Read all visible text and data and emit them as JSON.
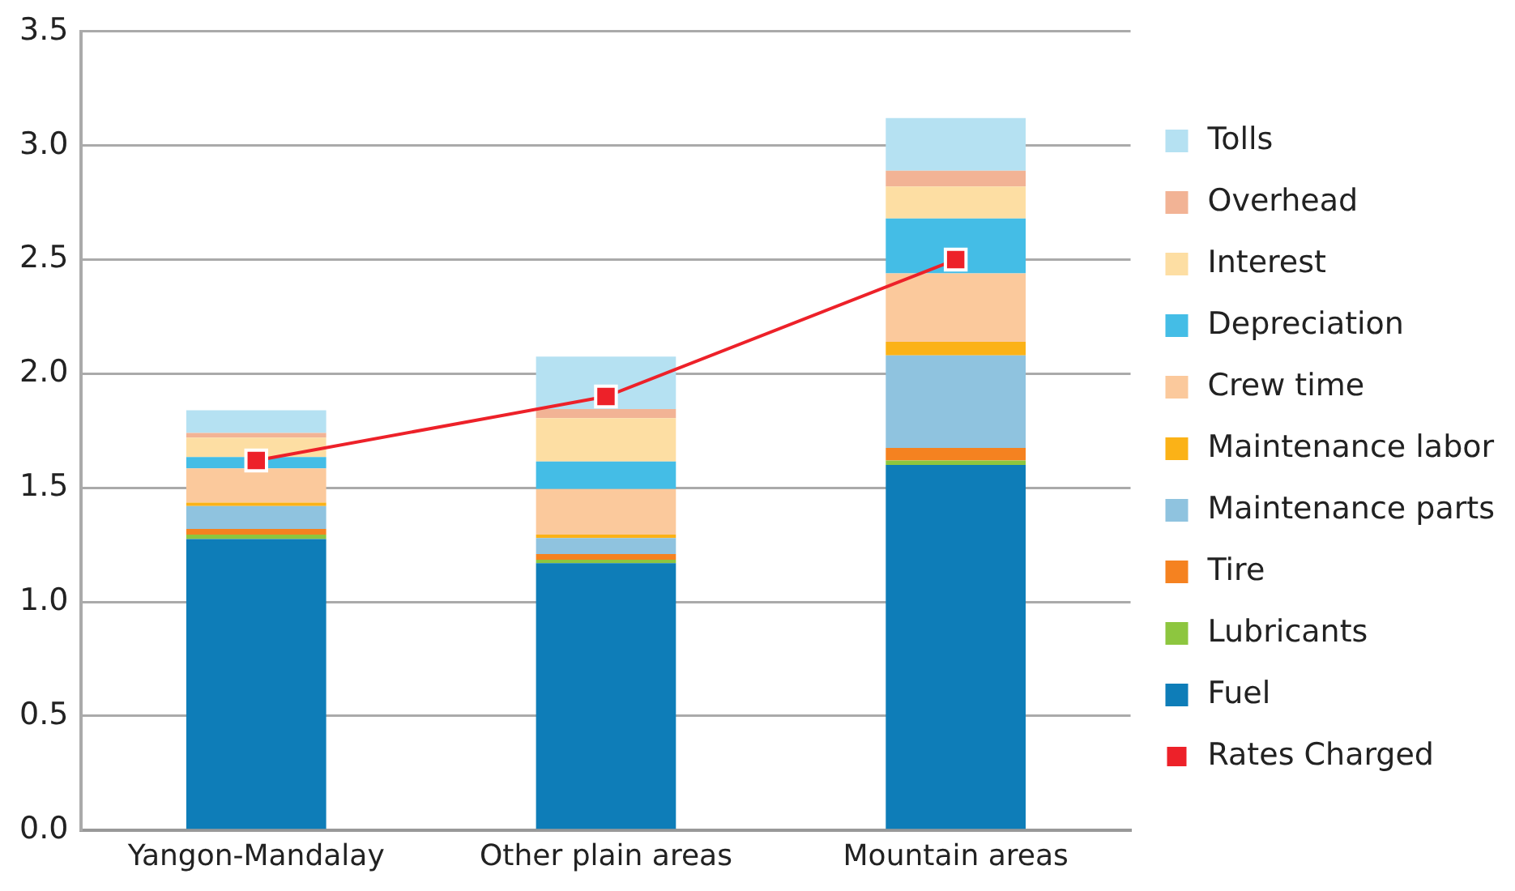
{
  "chart_data": {
    "type": "bar",
    "stacked": true,
    "categories": [
      "Yangon-Mandalay",
      "Other plain areas",
      "Mountain areas"
    ],
    "series": [
      {
        "name": "Fuel",
        "color": "#0e7db8",
        "values": [
          1.275,
          1.17,
          1.6
        ]
      },
      {
        "name": "Lubricants",
        "color": "#8dc63f",
        "values": [
          0.02,
          0.015,
          0.02
        ]
      },
      {
        "name": "Tire",
        "color": "#f58220",
        "values": [
          0.025,
          0.025,
          0.055
        ]
      },
      {
        "name": "Maintenance parts",
        "color": "#8fc3df",
        "values": [
          0.1,
          0.07,
          0.405
        ]
      },
      {
        "name": "Maintenance labor",
        "color": "#fbb217",
        "values": [
          0.015,
          0.015,
          0.06
        ]
      },
      {
        "name": "Crew time",
        "color": "#fbc99c",
        "values": [
          0.15,
          0.2,
          0.3
        ]
      },
      {
        "name": "Depreciation",
        "color": "#44bde6",
        "values": [
          0.05,
          0.12,
          0.24
        ]
      },
      {
        "name": "Interest",
        "color": "#fddea3",
        "values": [
          0.085,
          0.19,
          0.14
        ]
      },
      {
        "name": "Overhead",
        "color": "#f2b395",
        "values": [
          0.02,
          0.04,
          0.07
        ]
      },
      {
        "name": "Tolls",
        "color": "#b5e1f2",
        "values": [
          0.1,
          0.23,
          0.23
        ]
      },
      {
        "name": "Rates Charged",
        "type": "line",
        "color": "#ed2129",
        "values": [
          1.62,
          1.9,
          2.5
        ]
      }
    ],
    "ylim": [
      0,
      3.5
    ],
    "yticks": [
      {
        "value": 0,
        "label": "0.0"
      },
      {
        "value": 0.5,
        "label": "0.5"
      },
      {
        "value": 1,
        "label": "1.0"
      },
      {
        "value": 1.5,
        "label": "1.5"
      },
      {
        "value": 2,
        "label": "2.0"
      },
      {
        "value": 2.5,
        "label": "2.5"
      },
      {
        "value": 3,
        "label": "3.0"
      },
      {
        "value": 3.5,
        "label": "3.5"
      }
    ],
    "grid": "y",
    "legend": "right",
    "marker": "square",
    "line_style": "solid"
  }
}
